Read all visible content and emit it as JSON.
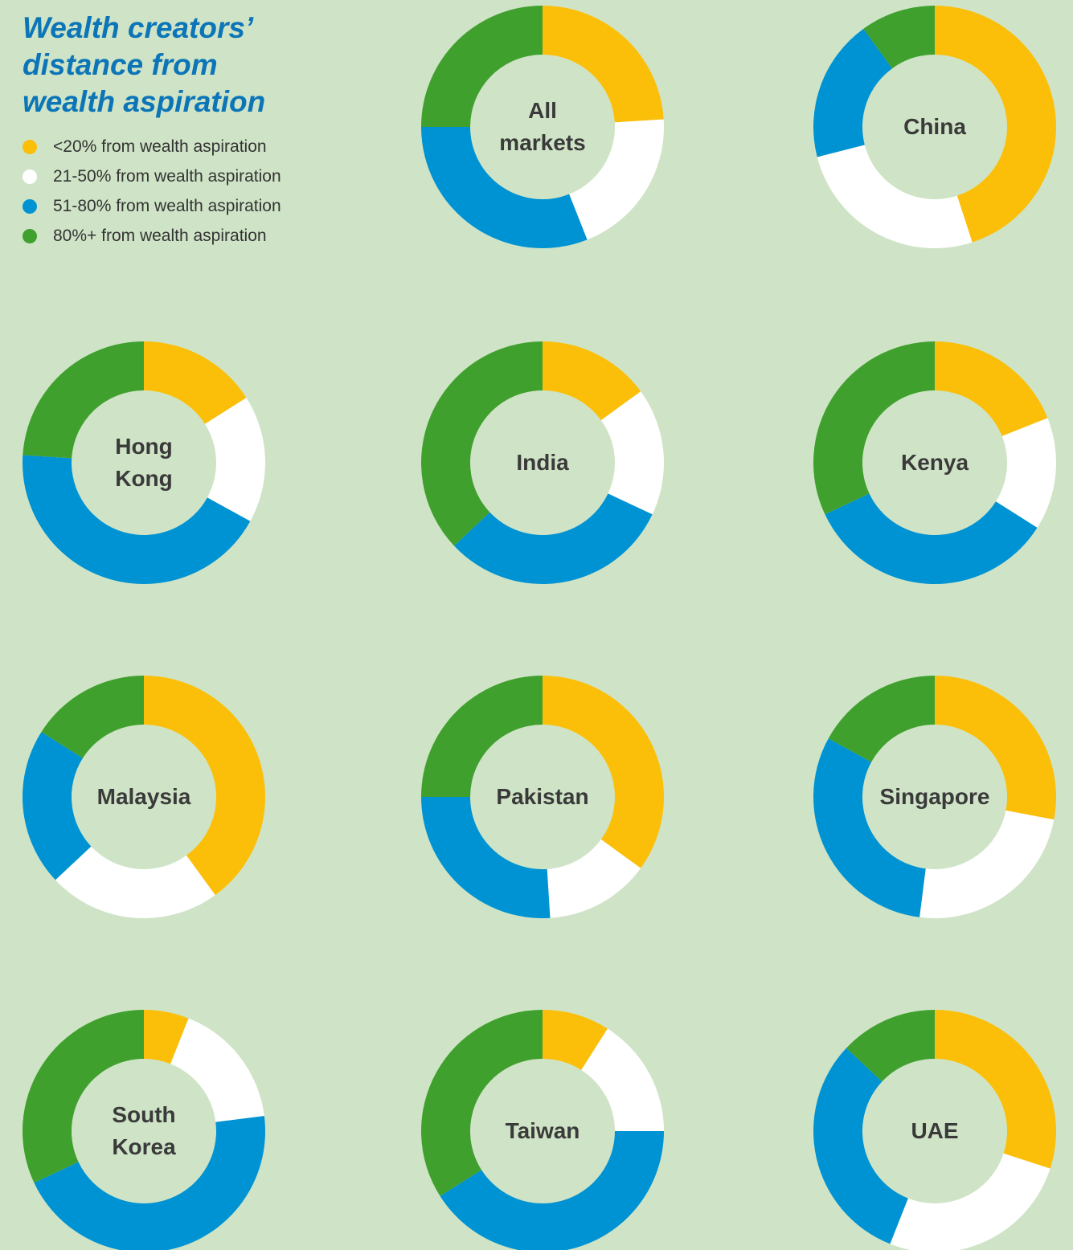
{
  "title": "Wealth creators’ distance from wealth aspiration",
  "categories": [
    "<20% from wealth aspiration",
    "21-50% from wealth aspiration",
    "51-80% from wealth aspiration",
    "80%+ from wealth aspiration"
  ],
  "colors": [
    "#fbbf0a",
    "#ffffff",
    "#0093d3",
    "#40a02e"
  ],
  "chart_data": [
    {
      "type": "donut",
      "title": "All markets",
      "values": [
        24,
        20,
        31,
        25
      ]
    },
    {
      "type": "donut",
      "title": "China",
      "values": [
        45,
        26,
        19,
        10
      ]
    },
    {
      "type": "donut",
      "title": "Hong Kong",
      "values": [
        16,
        17,
        43,
        24
      ]
    },
    {
      "type": "donut",
      "title": "India",
      "values": [
        15,
        17,
        31,
        37
      ]
    },
    {
      "type": "donut",
      "title": "Kenya",
      "values": [
        19,
        15,
        34,
        32
      ]
    },
    {
      "type": "donut",
      "title": "Malaysia",
      "values": [
        40,
        23,
        21,
        16
      ]
    },
    {
      "type": "donut",
      "title": "Pakistan",
      "values": [
        35,
        14,
        26,
        25
      ]
    },
    {
      "type": "donut",
      "title": "Singapore",
      "values": [
        28,
        24,
        31,
        17
      ]
    },
    {
      "type": "donut",
      "title": "South Korea",
      "values": [
        6,
        17,
        45,
        32
      ]
    },
    {
      "type": "donut",
      "title": "Taiwan",
      "values": [
        9,
        16,
        41,
        34
      ]
    },
    {
      "type": "donut",
      "title": "UAE",
      "values": [
        30,
        26,
        31,
        13
      ]
    }
  ]
}
